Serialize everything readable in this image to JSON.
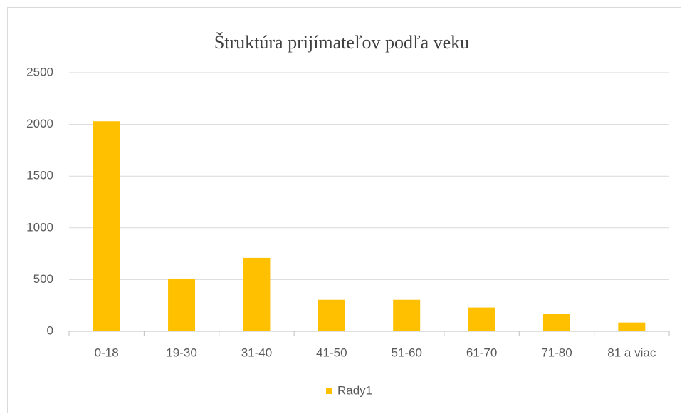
{
  "chart_data": {
    "type": "bar",
    "title": "Štruktúra prijímateľov podľa veku",
    "categories": [
      "0-18",
      "19-30",
      "31-40",
      "41-50",
      "51-60",
      "61-70",
      "71-80",
      "81 a viac"
    ],
    "series": [
      {
        "name": "Rady1",
        "color": "#ffc000",
        "values": [
          2030,
          510,
          710,
          305,
          305,
          230,
          170,
          85
        ]
      }
    ],
    "ylim": [
      0,
      2500
    ],
    "yticks": [
      0,
      500,
      1000,
      1500,
      2000,
      2500
    ],
    "grid": true,
    "legend": "bottom"
  }
}
